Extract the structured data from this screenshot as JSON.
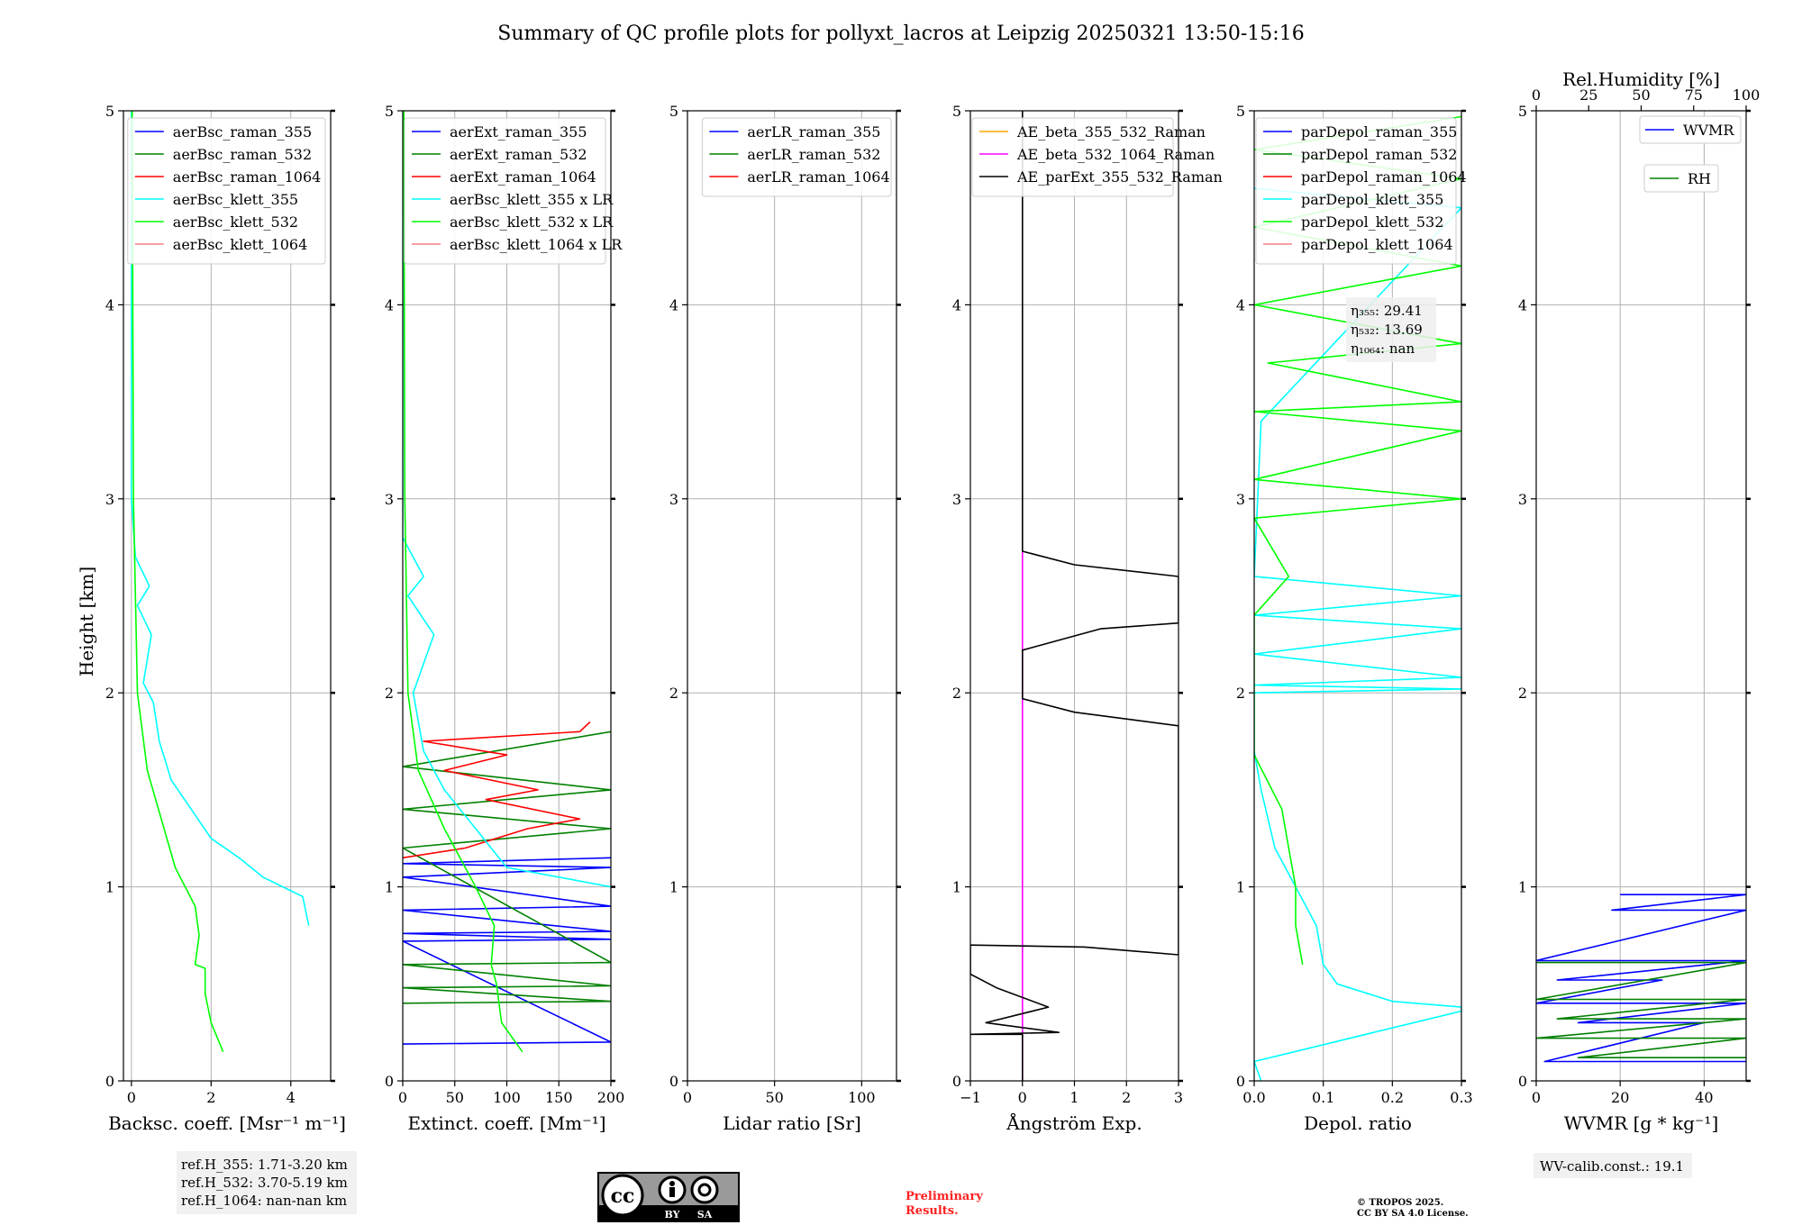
{
  "title": "Summary of QC profile plots for pollyxt_lacros at Leipzig 20250321 13:50-15:16",
  "ylabel": "Height [km]",
  "ref_heights": [
    "ref.H_355: 1.71-3.20 km",
    "ref.H_532: 3.70-5.19 km",
    "ref.H_1064: nan-nan km"
  ],
  "license_badge": {
    "by": "BY",
    "sa": "SA"
  },
  "preliminary": [
    "Preliminary",
    "Results."
  ],
  "copyright": [
    "© TROPOS 2025.",
    "CC BY SA 4.0 License."
  ],
  "wv_calib": "WV-calib.const.: 19.1",
  "colors": {
    "blue": "#0000ff",
    "green": "#008000",
    "red": "#ff0000",
    "cyan": "#00ffff",
    "lime": "#00ff00",
    "pink": "#f08080",
    "orange": "#ffa500",
    "magenta": "#ff00ff",
    "black": "#000000"
  },
  "chart_data": [
    {
      "type": "line",
      "xlabel": "Backsc. coeff. [Msr⁻¹ m⁻¹]",
      "ylim": [
        0,
        5
      ],
      "yticks": [
        0,
        1,
        2,
        3,
        4,
        5
      ],
      "xlim": [
        -0.2,
        5
      ],
      "xticks": [
        0,
        2,
        4
      ],
      "legend": "upper right",
      "series": [
        {
          "name": "aerBsc_raman_355",
          "color": "#0000ff",
          "values": []
        },
        {
          "name": "aerBsc_raman_532",
          "color": "#008000",
          "values": []
        },
        {
          "name": "aerBsc_raman_1064",
          "color": "#ff0000",
          "values": []
        },
        {
          "name": "aerBsc_klett_355",
          "color": "#00ffff",
          "values": [
            [
              4.45,
              0.8
            ],
            [
              4.3,
              0.95
            ],
            [
              3.8,
              1.0
            ],
            [
              3.3,
              1.05
            ],
            [
              2.7,
              1.15
            ],
            [
              2.0,
              1.25
            ],
            [
              1.5,
              1.4
            ],
            [
              1.0,
              1.55
            ],
            [
              0.7,
              1.75
            ],
            [
              0.55,
              1.95
            ],
            [
              0.3,
              2.05
            ],
            [
              0.5,
              2.3
            ],
            [
              0.15,
              2.45
            ],
            [
              0.45,
              2.55
            ],
            [
              0.1,
              2.7
            ],
            [
              0.0,
              3.0
            ],
            [
              0.0,
              5.0
            ]
          ]
        },
        {
          "name": "aerBsc_klett_532",
          "color": "#00ff00",
          "values": [
            [
              2.3,
              0.15
            ],
            [
              2.0,
              0.3
            ],
            [
              1.85,
              0.45
            ],
            [
              1.85,
              0.58
            ],
            [
              1.6,
              0.6
            ],
            [
              1.7,
              0.75
            ],
            [
              1.6,
              0.9
            ],
            [
              1.1,
              1.1
            ],
            [
              0.4,
              1.6
            ],
            [
              0.15,
              2.0
            ],
            [
              0.05,
              3.0
            ],
            [
              0.02,
              5.0
            ]
          ]
        },
        {
          "name": "aerBsc_klett_1064",
          "color": "#f08080",
          "values": []
        }
      ],
      "annotation": []
    },
    {
      "type": "line",
      "xlabel": "Extinct. coeff. [Mm⁻¹]",
      "ylim": [
        0,
        5
      ],
      "yticks": [
        0,
        1,
        2,
        3,
        4,
        5
      ],
      "xlim": [
        0,
        200
      ],
      "xticks": [
        0,
        50,
        100,
        150,
        200
      ],
      "legend": "upper right",
      "series": [
        {
          "name": "aerExt_raman_355",
          "color": "#0000ff",
          "values": [
            [
              0,
              0.19
            ],
            [
              200,
              0.2
            ],
            [
              0,
              0.72
            ],
            [
              200,
              0.73
            ],
            [
              0,
              0.76
            ],
            [
              200,
              0.77
            ],
            [
              0,
              0.88
            ],
            [
              200,
              0.9
            ],
            [
              0,
              1.05
            ],
            [
              200,
              1.1
            ],
            [
              0,
              1.12
            ],
            [
              200,
              1.15
            ]
          ]
        },
        {
          "name": "aerExt_raman_532",
          "color": "#008000",
          "values": [
            [
              0,
              0.4
            ],
            [
              200,
              0.41
            ],
            [
              0,
              0.48
            ],
            [
              200,
              0.49
            ],
            [
              0,
              0.6
            ],
            [
              200,
              0.61
            ],
            [
              0,
              1.2
            ],
            [
              200,
              1.3
            ],
            [
              0,
              1.4
            ],
            [
              200,
              1.5
            ],
            [
              0,
              1.62
            ],
            [
              200,
              1.8
            ]
          ]
        },
        {
          "name": "aerExt_raman_1064",
          "color": "#ff0000",
          "values": [
            [
              0,
              1.15
            ],
            [
              60,
              1.2
            ],
            [
              120,
              1.3
            ],
            [
              170,
              1.35
            ],
            [
              80,
              1.45
            ],
            [
              130,
              1.5
            ],
            [
              40,
              1.6
            ],
            [
              100,
              1.68
            ],
            [
              20,
              1.75
            ],
            [
              170,
              1.8
            ],
            [
              180,
              1.85
            ]
          ]
        },
        {
          "name": "aerBsc_klett_355 x LR",
          "color": "#00ffff",
          "values": [
            [
              200,
              1.0
            ],
            [
              150,
              1.05
            ],
            [
              100,
              1.1
            ],
            [
              70,
              1.3
            ],
            [
              40,
              1.5
            ],
            [
              20,
              1.7
            ],
            [
              10,
              2.0
            ],
            [
              30,
              2.3
            ],
            [
              5,
              2.5
            ],
            [
              20,
              2.6
            ],
            [
              0,
              2.8
            ],
            [
              0,
              5.0
            ]
          ]
        },
        {
          "name": "aerBsc_klett_532 x LR",
          "color": "#00ff00",
          "values": [
            [
              115,
              0.15
            ],
            [
              95,
              0.3
            ],
            [
              90,
              0.5
            ],
            [
              85,
              0.6
            ],
            [
              88,
              0.8
            ],
            [
              70,
              1.0
            ],
            [
              40,
              1.3
            ],
            [
              15,
              1.6
            ],
            [
              5,
              2.0
            ],
            [
              2,
              3.0
            ],
            [
              1,
              5.0
            ]
          ]
        },
        {
          "name": "aerBsc_klett_1064 x LR",
          "color": "#f08080",
          "values": []
        }
      ],
      "annotation": []
    },
    {
      "type": "line",
      "xlabel": "Lidar ratio [Sr]",
      "ylim": [
        0,
        5
      ],
      "yticks": [
        0,
        1,
        2,
        3,
        4,
        5
      ],
      "xlim": [
        0,
        120
      ],
      "xticks": [
        0,
        50,
        100
      ],
      "legend": "upper right",
      "series": [
        {
          "name": "aerLR_raman_355",
          "color": "#0000ff",
          "values": []
        },
        {
          "name": "aerLR_raman_532",
          "color": "#008000",
          "values": []
        },
        {
          "name": "aerLR_raman_1064",
          "color": "#ff0000",
          "values": []
        }
      ],
      "annotation": []
    },
    {
      "type": "line",
      "xlabel": "Ångström Exp.",
      "ylim": [
        0,
        5
      ],
      "yticks": [
        0,
        1,
        2,
        3,
        4,
        5
      ],
      "xlim": [
        -1,
        3
      ],
      "xticks": [
        -1,
        0,
        1,
        2,
        3
      ],
      "legend": "upper right",
      "series": [
        {
          "name": "AE_beta_355_532_Raman",
          "color": "#ffa500",
          "values": []
        },
        {
          "name": "AE_beta_532_1064_Raman",
          "color": "#ff00ff",
          "values": [
            [
              0,
              0
            ],
            [
              0,
              2.73
            ]
          ]
        },
        {
          "name": "AE_parExt_355_532_Raman",
          "color": "#000000",
          "values": [
            [
              0,
              0
            ],
            [
              0,
              0.24
            ],
            [
              -1,
              0.24
            ],
            [
              0.7,
              0.25
            ],
            [
              -0.7,
              0.3
            ],
            [
              0.5,
              0.38
            ],
            [
              -0.5,
              0.48
            ],
            [
              -1,
              0.55
            ],
            [
              -1,
              0.7
            ],
            [
              1.2,
              0.69
            ],
            [
              3,
              0.65
            ],
            [
              3,
              1.83
            ],
            [
              1,
              1.9
            ],
            [
              0,
              1.97
            ],
            [
              0,
              2.22
            ],
            [
              1.5,
              2.33
            ],
            [
              3,
              2.36
            ],
            [
              3,
              2.6
            ],
            [
              1.0,
              2.66
            ],
            [
              0,
              2.73
            ],
            [
              0,
              5.0
            ]
          ]
        }
      ],
      "annotation": []
    },
    {
      "type": "line",
      "xlabel": "Depol. ratio",
      "ylim": [
        0,
        5
      ],
      "yticks": [
        0,
        1,
        2,
        3,
        4,
        5
      ],
      "xlim": [
        0,
        0.3
      ],
      "xticks": [
        0.0,
        0.1,
        0.2,
        0.3
      ],
      "xticklabels": [
        "0.0",
        "0.1",
        "0.2",
        "0.3"
      ],
      "legend": "upper right",
      "series": [
        {
          "name": "parDepol_raman_355",
          "color": "#0000ff",
          "values": []
        },
        {
          "name": "parDepol_raman_532",
          "color": "#008000",
          "values": []
        },
        {
          "name": "parDepol_raman_1064",
          "color": "#ff0000",
          "values": []
        },
        {
          "name": "parDepol_klett_355",
          "color": "#00ffff",
          "values": [
            [
              0.01,
              0.0
            ],
            [
              0.0,
              0.1
            ],
            [
              0.3,
              0.36
            ],
            [
              0.3,
              0.38
            ],
            [
              0.2,
              0.41
            ],
            [
              0.12,
              0.5
            ],
            [
              0.1,
              0.6
            ],
            [
              0.09,
              0.8
            ],
            [
              0.06,
              1.0
            ],
            [
              0.03,
              1.2
            ],
            [
              0.01,
              1.5
            ],
            [
              0.0,
              1.7
            ],
            [
              0.0,
              2.0
            ],
            [
              0.3,
              2.02
            ],
            [
              0.0,
              2.04
            ],
            [
              0.3,
              2.08
            ],
            [
              0.0,
              2.2
            ],
            [
              0.3,
              2.33
            ],
            [
              0.0,
              2.4
            ],
            [
              0.3,
              2.5
            ],
            [
              0.0,
              2.6
            ],
            [
              0.01,
              3.4
            ],
            [
              0.3,
              4.5
            ],
            [
              0.0,
              4.6
            ]
          ]
        },
        {
          "name": "parDepol_klett_532",
          "color": "#00ff00",
          "values": [
            [
              0.07,
              0.6
            ],
            [
              0.06,
              0.8
            ],
            [
              0.06,
              1.0
            ],
            [
              0.05,
              1.2
            ],
            [
              0.04,
              1.4
            ],
            [
              0.0,
              1.68
            ],
            [
              0.0,
              2.4
            ],
            [
              0.05,
              2.6
            ],
            [
              0.0,
              2.9
            ],
            [
              0.3,
              3.0
            ],
            [
              0.0,
              3.1
            ],
            [
              0.3,
              3.35
            ],
            [
              0.0,
              3.45
            ],
            [
              0.3,
              3.5
            ],
            [
              0.02,
              3.7
            ],
            [
              0.3,
              3.8
            ],
            [
              0.0,
              4.0
            ],
            [
              0.3,
              4.2
            ],
            [
              0.0,
              4.4
            ],
            [
              0.3,
              4.65
            ],
            [
              0.0,
              4.8
            ],
            [
              0.3,
              4.97
            ]
          ]
        },
        {
          "name": "parDepol_klett_1064",
          "color": "#f08080",
          "values": []
        }
      ],
      "annotation": [
        "η₃₅₅: 29.41",
        "η₅₃₂: 13.69",
        "η₁₀₆₄: nan"
      ]
    },
    {
      "type": "line",
      "xlabel": "WVMR [g * kg⁻¹]",
      "x2label": "Rel.Humidity [%]",
      "ylim": [
        0,
        5
      ],
      "yticks": [
        0,
        1,
        2,
        3,
        4,
        5
      ],
      "xlim": [
        0,
        50
      ],
      "xticks": [
        0,
        20,
        40
      ],
      "x2lim": [
        0,
        100
      ],
      "x2ticks": [
        0,
        25,
        50,
        75,
        100
      ],
      "legend": "upper right",
      "series": [
        {
          "name": "WVMR",
          "color": "#0000ff",
          "values": [
            [
              20,
              0.96
            ],
            [
              50,
              0.96
            ],
            [
              18,
              0.88
            ],
            [
              50,
              0.88
            ],
            [
              0,
              0.62
            ],
            [
              50,
              0.62
            ],
            [
              5,
              0.52
            ],
            [
              30,
              0.52
            ],
            [
              0,
              0.4
            ],
            [
              50,
              0.4
            ],
            [
              10,
              0.3
            ],
            [
              40,
              0.3
            ],
            [
              2,
              0.1
            ],
            [
              50,
              0.1
            ]
          ]
        },
        {
          "name": "RH",
          "color": "#008000",
          "values": [
            [
              0,
              0.61
            ],
            [
              50,
              0.61
            ],
            [
              0,
              0.42
            ],
            [
              50,
              0.42
            ],
            [
              5,
              0.32
            ],
            [
              50,
              0.32
            ],
            [
              0,
              0.22
            ],
            [
              50,
              0.22
            ],
            [
              10,
              0.12
            ],
            [
              50,
              0.12
            ]
          ]
        }
      ],
      "annotation": []
    }
  ]
}
